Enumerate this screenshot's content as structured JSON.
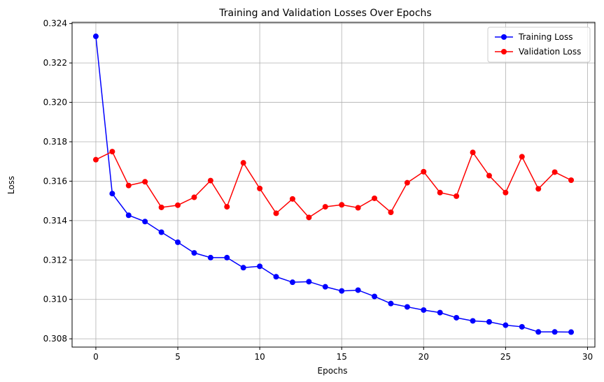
{
  "chart_data": {
    "type": "line",
    "title": "Training and Validation Losses Over Epochs",
    "xlabel": "Epochs",
    "ylabel": "Loss",
    "xlim": [
      -1.45,
      30.45
    ],
    "ylim": [
      0.30758,
      0.32406
    ],
    "x_ticks": [
      0,
      5,
      10,
      15,
      20,
      25,
      30
    ],
    "x_tick_labels": [
      "0",
      "5",
      "10",
      "15",
      "20",
      "25",
      "30"
    ],
    "y_ticks": [
      0.308,
      0.31,
      0.312,
      0.314,
      0.316,
      0.318,
      0.32,
      0.322,
      0.324
    ],
    "y_tick_labels": [
      "0.308",
      "0.310",
      "0.312",
      "0.314",
      "0.316",
      "0.318",
      "0.320",
      "0.322",
      "0.324"
    ],
    "grid": true,
    "legend_position": "top-right",
    "x": [
      0,
      1,
      2,
      3,
      4,
      5,
      6,
      7,
      8,
      9,
      10,
      11,
      12,
      13,
      14,
      15,
      16,
      17,
      18,
      19,
      20,
      21,
      22,
      23,
      24,
      25,
      26,
      27,
      28,
      29
    ],
    "series": [
      {
        "name": "Training Loss",
        "color": "#0000ff",
        "marker": "circle",
        "values": [
          0.32335,
          0.31537,
          0.31427,
          0.31395,
          0.31341,
          0.3129,
          0.31236,
          0.31212,
          0.31212,
          0.31161,
          0.31168,
          0.31115,
          0.31087,
          0.3109,
          0.31064,
          0.31043,
          0.31047,
          0.31015,
          0.30979,
          0.30962,
          0.30946,
          0.30933,
          0.30907,
          0.30891,
          0.30886,
          0.30869,
          0.30861,
          0.30835,
          0.30835,
          0.30834
        ]
      },
      {
        "name": "Validation Loss",
        "color": "#ff0000",
        "marker": "circle",
        "values": [
          0.31709,
          0.3175,
          0.31578,
          0.31597,
          0.31467,
          0.31478,
          0.31518,
          0.31603,
          0.3147,
          0.31693,
          0.31563,
          0.31437,
          0.3151,
          0.31416,
          0.3147,
          0.3148,
          0.31465,
          0.31513,
          0.31442,
          0.31592,
          0.31648,
          0.31542,
          0.31524,
          0.31746,
          0.31628,
          0.31542,
          0.31724,
          0.31561,
          0.31646,
          0.31605
        ]
      }
    ]
  }
}
